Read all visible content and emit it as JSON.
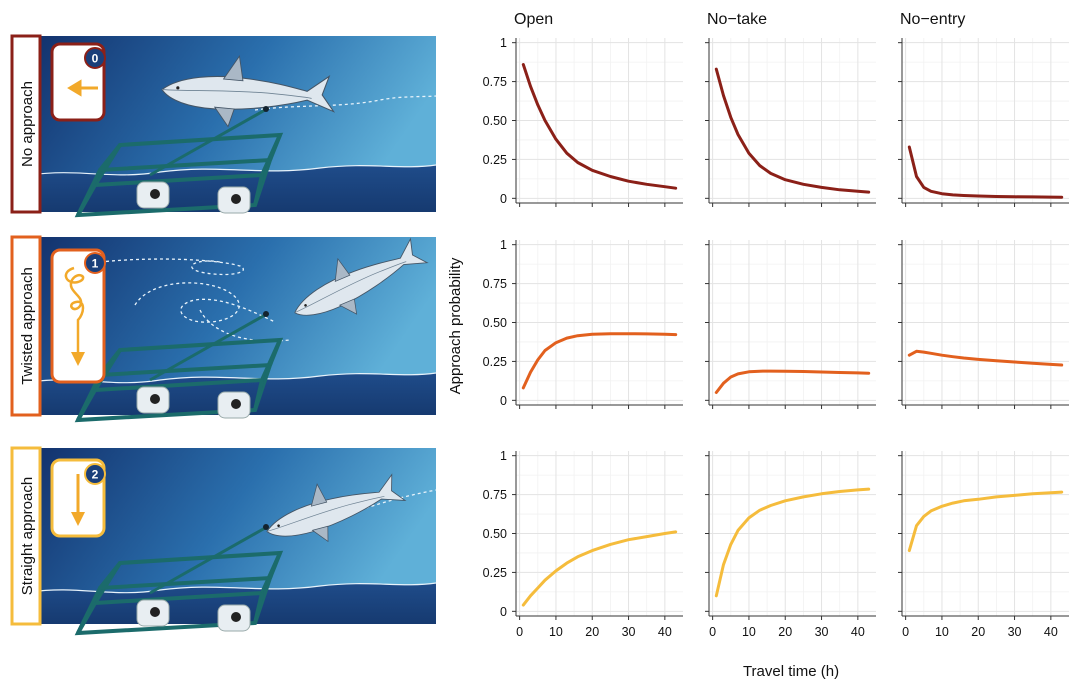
{
  "rows": [
    {
      "label": "No approach",
      "badge": "0",
      "color": "#8B2018"
    },
    {
      "label": "Twisted approach",
      "badge": "1",
      "color": "#E2601E"
    },
    {
      "label": "Straight approach",
      "badge": "2",
      "color": "#F5BC3C"
    }
  ],
  "chart_data": {
    "type": "line",
    "title": "",
    "xlabel": "Travel time (h)",
    "ylabel": "Approach probability",
    "columns": [
      "Open",
      "No−take",
      "No−entry"
    ],
    "xlim": [
      -1,
      45
    ],
    "ylim": [
      -0.03,
      1.03
    ],
    "x_ticks": [
      0,
      10,
      20,
      30,
      40
    ],
    "y_ticks": [
      0,
      0.25,
      0.5,
      0.75,
      1
    ],
    "y_tick_labels": [
      "0",
      "0.25",
      "0.50",
      "0.75",
      "1"
    ],
    "grid": true,
    "x": [
      1,
      3,
      5,
      7,
      10,
      13,
      16,
      20,
      25,
      30,
      35,
      40,
      43
    ],
    "panels": [
      {
        "row": "No approach",
        "column": "Open",
        "color": "#8B2018",
        "values": [
          0.86,
          0.72,
          0.6,
          0.5,
          0.38,
          0.29,
          0.23,
          0.18,
          0.14,
          0.11,
          0.09,
          0.075,
          0.065
        ]
      },
      {
        "row": "No approach",
        "column": "No−take",
        "color": "#8B2018",
        "values": [
          0.83,
          0.66,
          0.52,
          0.41,
          0.29,
          0.21,
          0.16,
          0.12,
          0.09,
          0.07,
          0.055,
          0.045,
          0.04
        ]
      },
      {
        "row": "No approach",
        "column": "No−entry",
        "color": "#8B2018",
        "values": [
          0.33,
          0.14,
          0.07,
          0.045,
          0.03,
          0.022,
          0.018,
          0.015,
          0.012,
          0.01,
          0.009,
          0.008,
          0.007
        ]
      },
      {
        "row": "Twisted approach",
        "column": "Open",
        "color": "#E2601E",
        "values": [
          0.08,
          0.18,
          0.26,
          0.32,
          0.37,
          0.4,
          0.415,
          0.425,
          0.428,
          0.428,
          0.427,
          0.425,
          0.422
        ]
      },
      {
        "row": "Twisted approach",
        "column": "No−take",
        "color": "#E2601E",
        "values": [
          0.05,
          0.11,
          0.15,
          0.17,
          0.183,
          0.187,
          0.188,
          0.187,
          0.185,
          0.182,
          0.179,
          0.176,
          0.174
        ]
      },
      {
        "row": "Twisted approach",
        "column": "No−entry",
        "color": "#E2601E",
        "values": [
          0.29,
          0.315,
          0.31,
          0.302,
          0.29,
          0.28,
          0.272,
          0.263,
          0.254,
          0.246,
          0.238,
          0.231,
          0.227
        ]
      },
      {
        "row": "Straight approach",
        "column": "Open",
        "color": "#F5BC3C",
        "values": [
          0.04,
          0.1,
          0.15,
          0.2,
          0.26,
          0.31,
          0.35,
          0.39,
          0.43,
          0.46,
          0.48,
          0.5,
          0.51
        ]
      },
      {
        "row": "Straight approach",
        "column": "No−take",
        "color": "#F5BC3C",
        "values": [
          0.1,
          0.3,
          0.43,
          0.52,
          0.6,
          0.65,
          0.68,
          0.71,
          0.735,
          0.755,
          0.77,
          0.78,
          0.785
        ]
      },
      {
        "row": "Straight approach",
        "column": "No−entry",
        "color": "#F5BC3C",
        "values": [
          0.39,
          0.55,
          0.61,
          0.645,
          0.675,
          0.695,
          0.71,
          0.72,
          0.735,
          0.745,
          0.755,
          0.762,
          0.766
        ]
      }
    ]
  }
}
